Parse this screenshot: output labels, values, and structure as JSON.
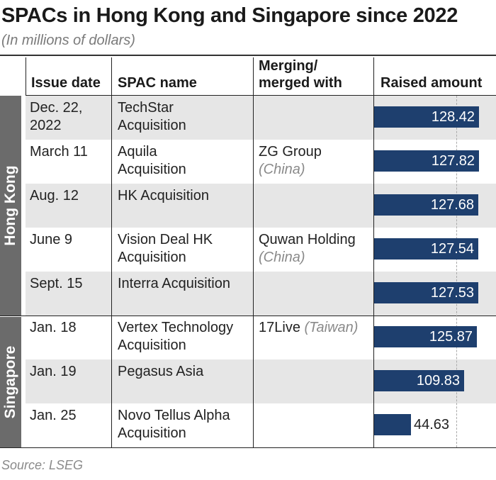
{
  "title": "SPACs in Hong Kong and Singapore since 2022",
  "subtitle": "(In millions of dollars)",
  "headers": {
    "issue_date": "Issue date",
    "spac_name": "SPAC name",
    "merging": "Merging/\nmerged with",
    "raised": "Raised amount"
  },
  "groups": [
    "Hong Kong",
    "Singapore"
  ],
  "rows": [
    {
      "date": "Dec. 22,\n2022",
      "name": "TechStar\nAcquisition",
      "merge": "",
      "merge_country": "",
      "group": "Hong Kong"
    },
    {
      "date": "March 11",
      "name": "Aquila\nAcquisition",
      "merge": "ZG Group",
      "merge_country": "(China)",
      "group": "Hong Kong"
    },
    {
      "date": "Aug. 12",
      "name": "HK Acquisition",
      "merge": "",
      "merge_country": "",
      "group": "Hong Kong"
    },
    {
      "date": "June 9",
      "name": "Vision Deal HK\nAcquisition",
      "merge": "Quwan Holding",
      "merge_country": "(China)",
      "group": "Hong Kong"
    },
    {
      "date": "Sept. 15",
      "name": "Interra Acquisition",
      "merge": "",
      "merge_country": "",
      "group": "Hong Kong"
    },
    {
      "date": "Jan. 18",
      "name": "Vertex Technology\nAcquisition",
      "merge": "17Live",
      "merge_country": "(Taiwan)",
      "group": "Singapore"
    },
    {
      "date": "Jan. 19",
      "name": "Pegasus Asia",
      "merge": "",
      "merge_country": "",
      "group": "Singapore"
    },
    {
      "date": "Jan. 25",
      "name": "Novo Tellus Alpha\nAcquisition",
      "merge": "",
      "merge_country": "",
      "group": "Singapore"
    }
  ],
  "chart_data": {
    "type": "bar",
    "orientation": "horizontal",
    "categories": [
      "TechStar Acquisition",
      "Aquila Acquisition",
      "HK Acquisition",
      "Vision Deal HK Acquisition",
      "Interra Acquisition",
      "Vertex Technology Acquisition",
      "Pegasus Asia",
      "Novo Tellus Alpha Acquisition"
    ],
    "values": [
      128.42,
      127.82,
      127.68,
      127.54,
      127.53,
      125.87,
      109.83,
      44.63
    ],
    "value_labels": [
      "128.42",
      "127.82",
      "127.68",
      "127.54",
      "127.53",
      "125.87",
      "109.83",
      "44.63"
    ],
    "xlim": [
      0,
      150
    ],
    "gridlines": [
      100,
      150
    ],
    "bar_color": "#1e3f6e"
  },
  "source": "Source: LSEG"
}
